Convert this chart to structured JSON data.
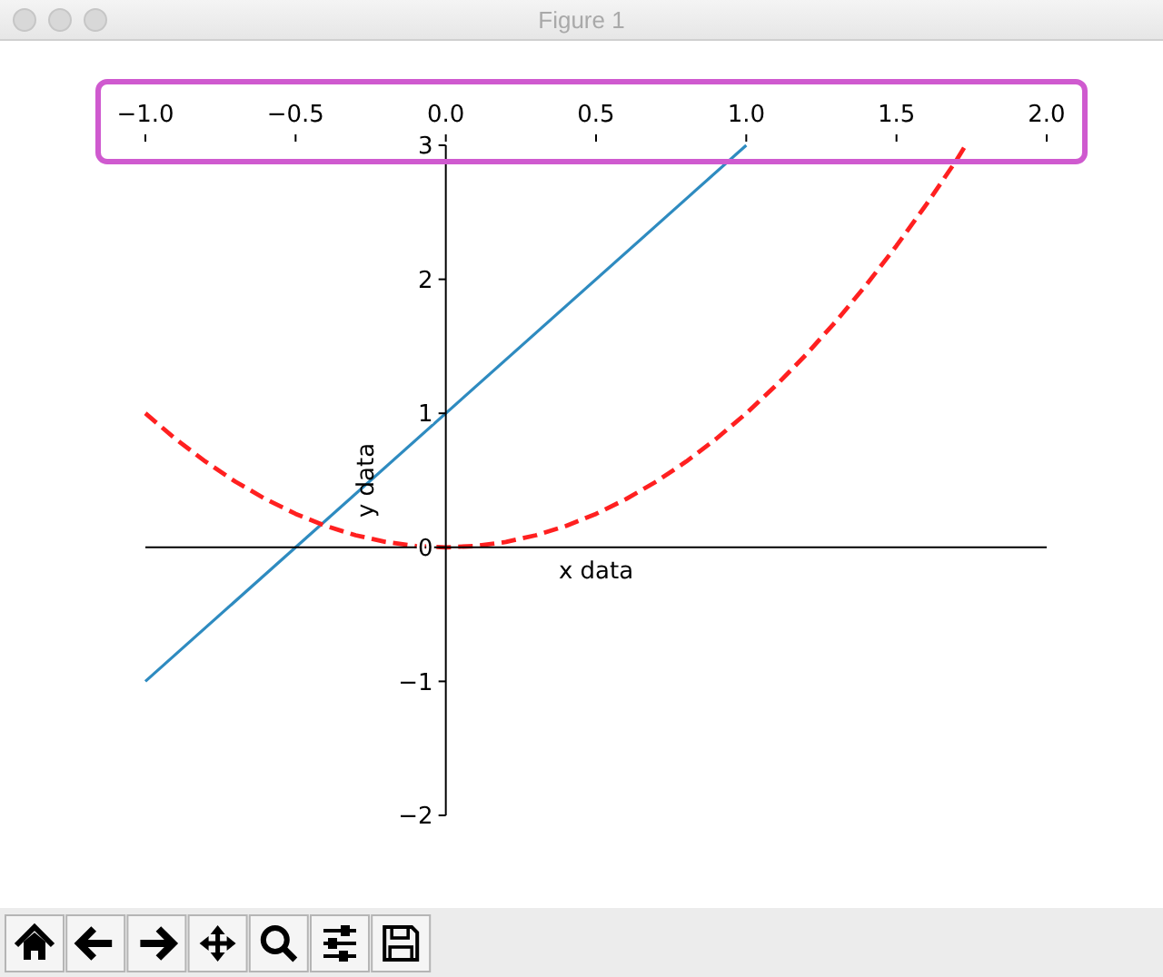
{
  "chart_data": {
    "type": "line",
    "title": "Figure 1",
    "xlabel": "x data",
    "ylabel": "y data",
    "xlim": [
      -1,
      2
    ],
    "ylim": [
      -2,
      3
    ],
    "xticks": [
      {
        "value": -1,
        "label": "−1.0"
      },
      {
        "value": -0.5,
        "label": "−0.5"
      },
      {
        "value": 0,
        "label": "0.0"
      },
      0.5,
      {
        "value": 1,
        "label": "1.0"
      },
      1.5,
      {
        "value": 2,
        "label": "2.0"
      }
    ],
    "yticks": [
      {
        "value": -2,
        "label": "−2"
      },
      {
        "value": -1,
        "label": "−1"
      },
      0,
      1,
      2,
      3
    ],
    "line_style": "solid",
    "series": [
      {
        "color": "#2e8bc0",
        "x": [
          -1,
          1
        ],
        "values": [
          -1,
          3
        ]
      },
      {
        "color": "#ff2020",
        "line_style": "dashed",
        "x": [
          -1,
          -0.9,
          -0.8,
          -0.7,
          -0.6,
          -0.5,
          -0.4,
          -0.3,
          -0.2,
          -0.1,
          0,
          0.1,
          0.2,
          0.3,
          0.4,
          0.5,
          0.6,
          0.7,
          0.8,
          0.9,
          1,
          1.1,
          1.2,
          1.3,
          1.4,
          1.5,
          1.6,
          1.7,
          1.73
        ],
        "values": [
          1,
          0.81,
          0.64,
          0.49,
          0.36,
          0.25,
          0.16,
          0.09,
          0.04,
          0.01,
          0,
          0.01,
          0.04,
          0.09,
          0.16,
          0.25,
          0.36,
          0.49,
          0.64,
          0.81,
          1,
          1.21,
          1.44,
          1.69,
          1.96,
          2.25,
          2.56,
          2.89,
          3
        ]
      }
    ]
  }
}
